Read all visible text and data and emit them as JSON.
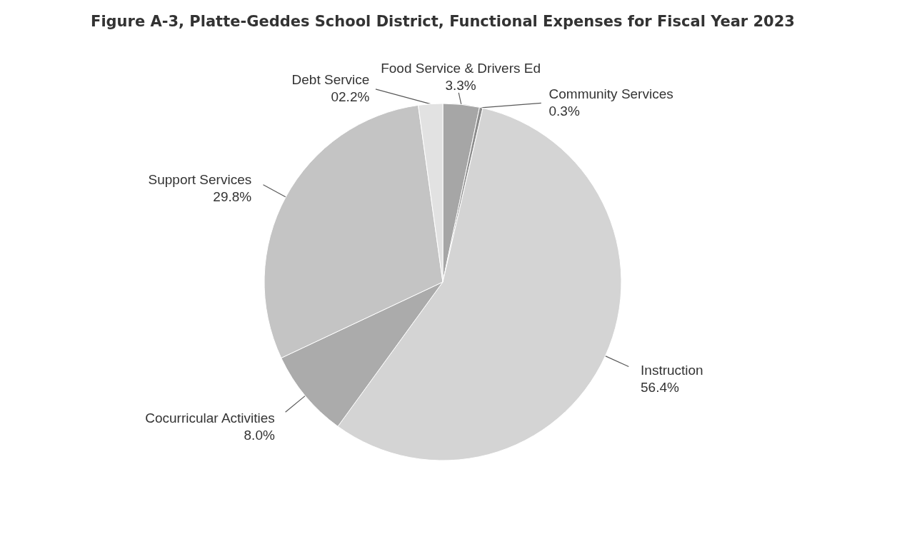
{
  "chart_data": {
    "type": "pie",
    "title": "Figure A-3, Platte-Geddes School District, Functional Expenses for Fiscal Year 2023",
    "categories": [
      "Food Service & Drivers Ed",
      "Community Services",
      "Instruction",
      "Cocurricular Activities",
      "Support Services",
      "Debt Service"
    ],
    "values": [
      3.3,
      0.3,
      56.4,
      8.0,
      29.8,
      2.2
    ],
    "value_labels": [
      "3.3%",
      "0.3%",
      "56.4%",
      "8.0%",
      "29.8%",
      "02.2%"
    ],
    "colors": [
      "#a6a6a6",
      "#8c8c8c",
      "#d4d4d4",
      "#ababab",
      "#c4c4c4",
      "#e2e2e2"
    ]
  }
}
